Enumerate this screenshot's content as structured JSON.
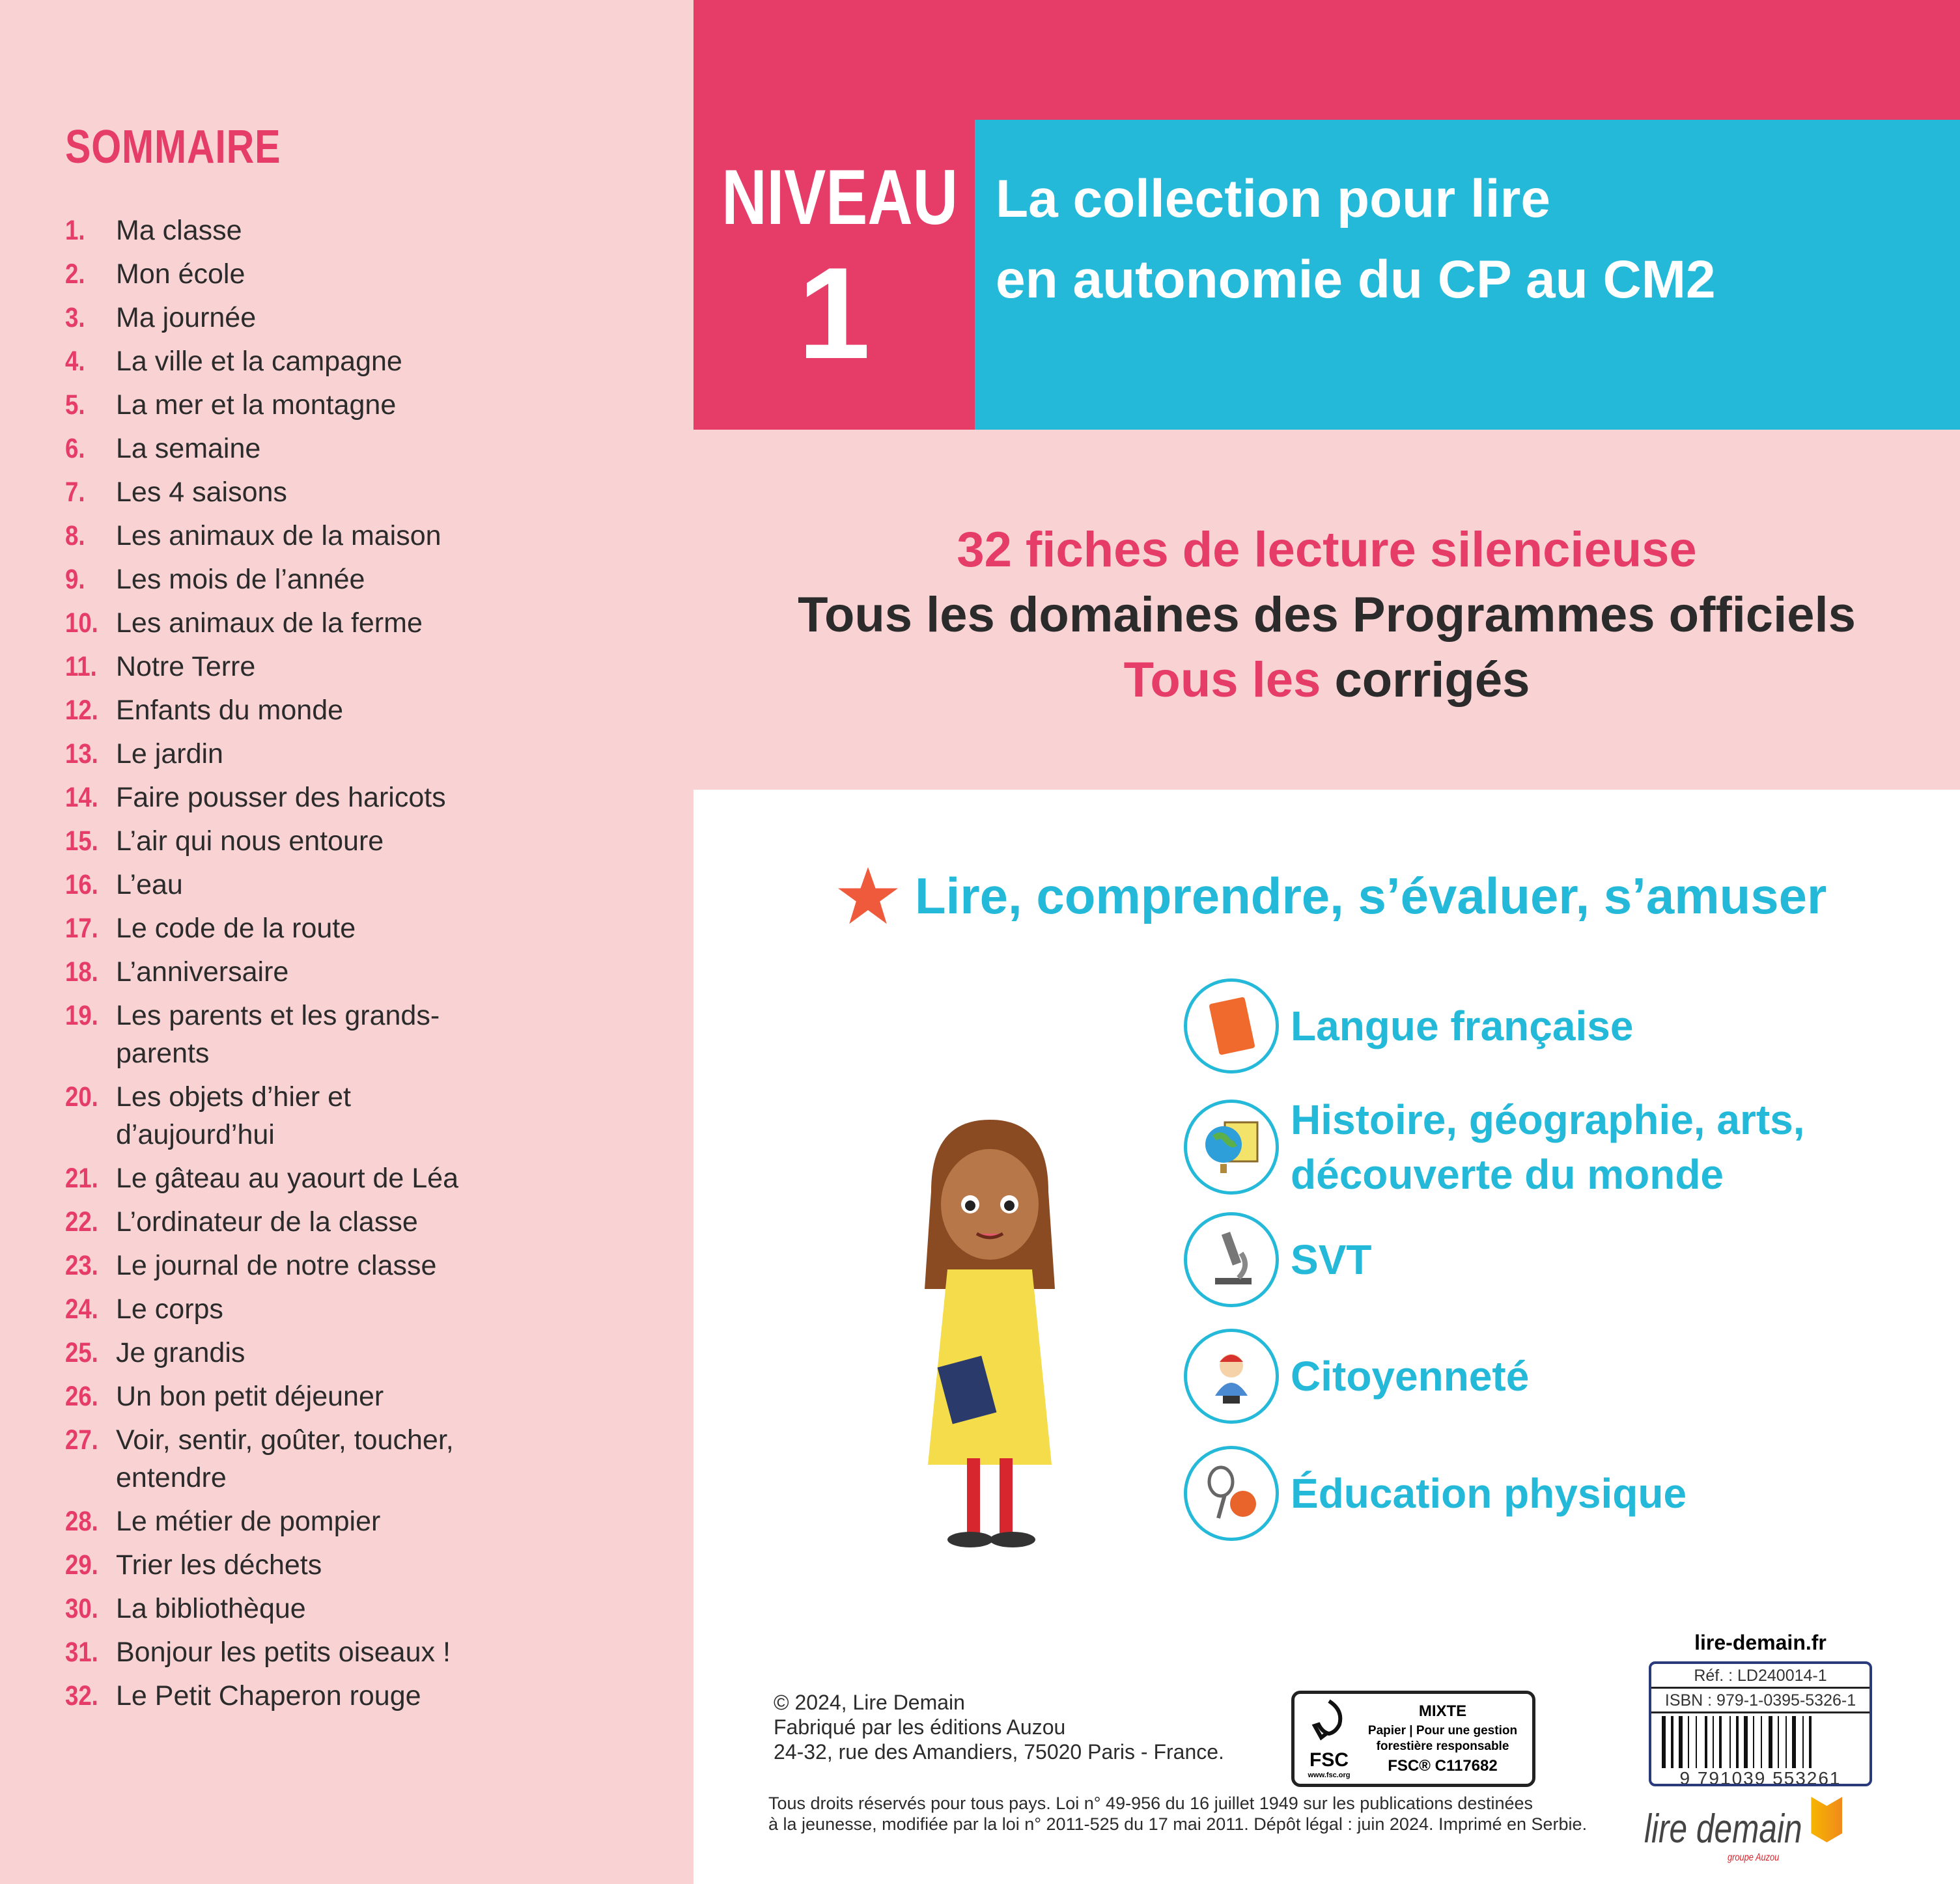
{
  "sommaire": {
    "title": "SOMMAIRE",
    "items": [
      {
        "n": "1.",
        "t": "Ma classe"
      },
      {
        "n": "2.",
        "t": "Mon école"
      },
      {
        "n": "3.",
        "t": "Ma journée"
      },
      {
        "n": "4.",
        "t": "La ville et la campagne"
      },
      {
        "n": "5.",
        "t": "La mer et la montagne"
      },
      {
        "n": "6.",
        "t": "La semaine"
      },
      {
        "n": "7.",
        "t": "Les 4 saisons"
      },
      {
        "n": "8.",
        "t": "Les animaux de la maison"
      },
      {
        "n": "9.",
        "t": "Les mois de l’année"
      },
      {
        "n": "10.",
        "t": "Les animaux de la ferme"
      },
      {
        "n": "11.",
        "t": "Notre Terre"
      },
      {
        "n": "12.",
        "t": "Enfants du monde"
      },
      {
        "n": "13.",
        "t": "Le jardin"
      },
      {
        "n": "14.",
        "t": "Faire pousser des haricots"
      },
      {
        "n": "15.",
        "t": "L’air qui nous entoure"
      },
      {
        "n": "16.",
        "t": "L’eau"
      },
      {
        "n": "17.",
        "t": "Le code de la route"
      },
      {
        "n": "18.",
        "t": "L’anniversaire"
      },
      {
        "n": "19.",
        "t": "Les parents et les grands-parents"
      },
      {
        "n": "20.",
        "t": "Les objets d’hier et d’aujourd’hui"
      },
      {
        "n": "21.",
        "t": "Le gâteau au yaourt de Léa"
      },
      {
        "n": "22.",
        "t": "L’ordinateur de la classe"
      },
      {
        "n": "23.",
        "t": "Le journal de notre classe"
      },
      {
        "n": "24.",
        "t": "Le corps"
      },
      {
        "n": "25.",
        "t": "Je grandis"
      },
      {
        "n": "26.",
        "t": "Un bon petit déjeuner"
      },
      {
        "n": "27.",
        "t": "Voir, sentir, goûter, toucher, entendre"
      },
      {
        "n": "28.",
        "t": "Le métier de pompier"
      },
      {
        "n": "29.",
        "t": "Trier les déchets"
      },
      {
        "n": "30.",
        "t": "La bibliothèque"
      },
      {
        "n": "31.",
        "t": "Bonjour les petits oiseaux !"
      },
      {
        "n": "32.",
        "t": "Le Petit Chaperon rouge"
      }
    ]
  },
  "niveau": {
    "word": "NIVEAU",
    "number": "1"
  },
  "collection": {
    "line1": "La collection pour lire",
    "line2": "en autonomie du CP au CM2"
  },
  "features": {
    "line1": "32 fiches de lecture silencieuse",
    "line2": "Tous les domaines des Programmes officiels",
    "line3a": "Tous les",
    "line3b": "corrigés"
  },
  "motto": "Lire, comprendre, s’évaluer, s’amuser",
  "subjects": [
    {
      "label": "Langue française",
      "icon": "book-icon"
    },
    {
      "label": "Histoire, géographie, arts, découverte du monde",
      "icon": "globe-icon"
    },
    {
      "label": "SVT",
      "icon": "microscope-icon"
    },
    {
      "label": "Citoyenneté",
      "icon": "marianne-bust-icon"
    },
    {
      "label": "Éducation physique",
      "icon": "racket-ball-icon"
    }
  ],
  "footer": {
    "copyright": "© 2024, Lire Demain",
    "made_by": "Fabriqué par les éditions Auzou",
    "address": "24-32, rue des Amandiers, 75020 Paris - France.",
    "legal1": "Tous droits réservés pour tous pays. Loi n° 49-956 du 16 juillet 1949 sur les publications destinées",
    "legal2": "à la jeunesse, modifiée par la loi n° 2011-525 du 17 mai 2011. Dépôt légal : juin 2024. Imprimé en Serbie.",
    "fsc": {
      "logo": "FSC",
      "url": "www.fsc.org",
      "mixte": "MIXTE",
      "paper": "Papier | Pour une gestion forestière responsable",
      "code": "FSC® C117682"
    },
    "site": "lire-demain.fr",
    "ref": "Réf. : LD240014-1",
    "isbn": "ISBN : 979-1-0395-5326-1",
    "ean": "9  791039  553261",
    "brand": "lire demain",
    "brand_sub": "groupe Auzou"
  },
  "colors": {
    "pink": "#e63c68",
    "light_pink": "#f9d3d4",
    "cyan": "#24b9d9"
  }
}
